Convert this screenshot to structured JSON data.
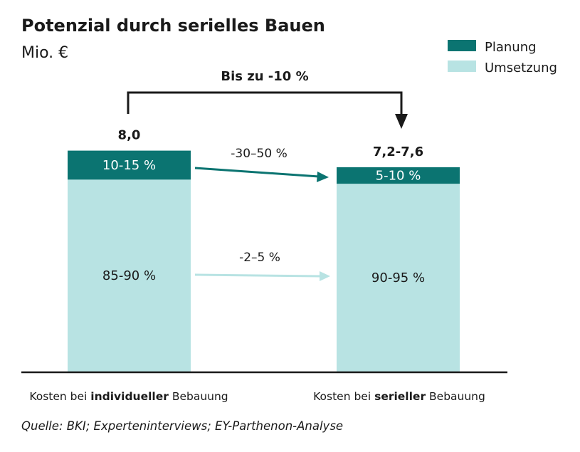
{
  "chart_data": {
    "type": "bar",
    "title": "Potenzial durch serielles Bauen",
    "unit": "Mio. €",
    "legend": [
      {
        "name": "Planung",
        "color": "#0b7471"
      },
      {
        "name": "Umsetzung",
        "color": "#b8e3e3"
      }
    ],
    "categories": [
      {
        "prefix": "Kosten bei ",
        "bold": "individueller",
        "suffix": " Bebauung"
      },
      {
        "prefix": "Kosten bei ",
        "bold": "serieller",
        "suffix": " Bebauung"
      }
    ],
    "totals": [
      "8,0",
      "7,2-7,6"
    ],
    "total_values": [
      8.0,
      7.4
    ],
    "series": [
      {
        "name": "Umsetzung",
        "values": [
          6.95,
          6.8
        ],
        "labels": [
          "85-90 %",
          "90-95 %"
        ],
        "color": "#b8e3e3",
        "text_color": "#1a1a1a"
      },
      {
        "name": "Planung",
        "values": [
          1.05,
          0.6
        ],
        "labels": [
          "10-15 %",
          "5-10 %"
        ],
        "color": "#0b7471",
        "text_color": "#ffffff"
      }
    ],
    "annotations": {
      "bracket_label": "Bis zu -10 %",
      "arrows": [
        {
          "label": "-30–50 %",
          "series": "Planung",
          "color": "#0b7471"
        },
        {
          "label": "-2–5 %",
          "series": "Umsetzung",
          "color": "#b8e3e3"
        }
      ]
    },
    "source": "Quelle: BKI; Experteninterviews; EY-Parthenon-Analyse",
    "ylim": [
      0,
      8.0
    ]
  }
}
